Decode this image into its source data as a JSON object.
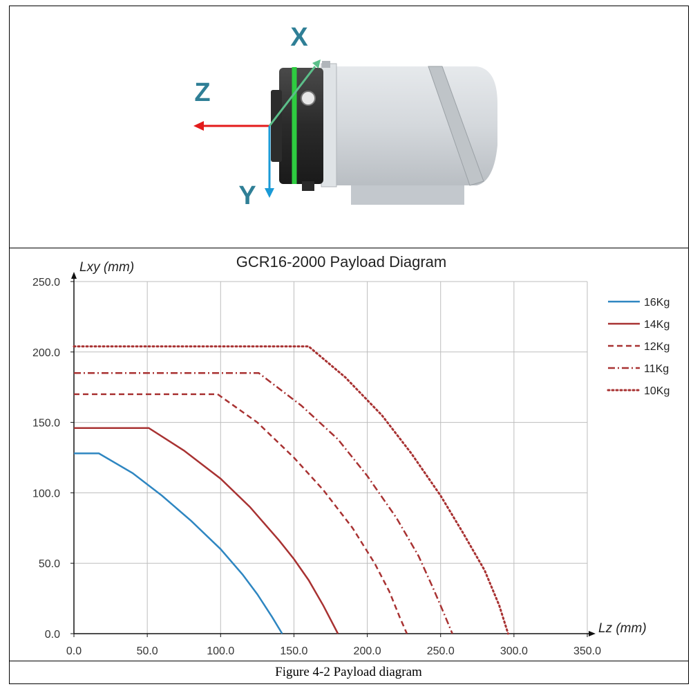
{
  "figure": {
    "axis_labels": {
      "x": "X",
      "y": "Y",
      "z": "Z"
    },
    "caption": "Figure 4-2 Payload diagram"
  },
  "colors": {
    "x_axis": "#5cbf8a",
    "y_axis": "#1a9ad6",
    "z_axis": "#e31b1b",
    "flange_ring": "#2ecc40",
    "axis_letters": "#2f7f96",
    "series_blue": "#2e86c1",
    "series_red": "#a83232"
  },
  "chart_data": {
    "type": "line",
    "title": "GCR16-2000 Payload Diagram",
    "xlabel": "Lz (mm)",
    "ylabel": "Lxy (mm)",
    "xlim": [
      0,
      350
    ],
    "ylim": [
      0,
      250
    ],
    "x_ticks": [
      "0.0",
      "50.0",
      "100.0",
      "150.0",
      "200.0",
      "250.0",
      "300.0",
      "350.0"
    ],
    "y_ticks": [
      "0.0",
      "50.0",
      "100.0",
      "150.0",
      "200.0",
      "250.0"
    ],
    "grid": true,
    "legend_position": "right",
    "series": [
      {
        "name": "16Kg",
        "style": "solid",
        "color": "#2e86c1",
        "points": [
          [
            0,
            128
          ],
          [
            17,
            128
          ],
          [
            40,
            114
          ],
          [
            60,
            98
          ],
          [
            80,
            80
          ],
          [
            100,
            60
          ],
          [
            115,
            42
          ],
          [
            125,
            28
          ],
          [
            135,
            12
          ],
          [
            142,
            0
          ]
        ]
      },
      {
        "name": "14Kg",
        "style": "solid",
        "color": "#a83232",
        "points": [
          [
            0,
            146
          ],
          [
            51,
            146
          ],
          [
            75,
            130
          ],
          [
            100,
            110
          ],
          [
            120,
            90
          ],
          [
            140,
            66
          ],
          [
            150,
            53
          ],
          [
            160,
            38
          ],
          [
            170,
            20
          ],
          [
            180,
            0
          ]
        ]
      },
      {
        "name": "12Kg",
        "style": "dashed",
        "color": "#a83232",
        "points": [
          [
            0,
            170
          ],
          [
            98,
            170
          ],
          [
            125,
            150
          ],
          [
            150,
            125
          ],
          [
            170,
            102
          ],
          [
            190,
            75
          ],
          [
            205,
            50
          ],
          [
            215,
            30
          ],
          [
            222,
            12
          ],
          [
            227,
            0
          ]
        ]
      },
      {
        "name": "11Kg",
        "style": "dashdot",
        "color": "#a83232",
        "points": [
          [
            0,
            185
          ],
          [
            126,
            185
          ],
          [
            155,
            162
          ],
          [
            180,
            138
          ],
          [
            200,
            112
          ],
          [
            220,
            82
          ],
          [
            235,
            55
          ],
          [
            245,
            32
          ],
          [
            252,
            15
          ],
          [
            258,
            0
          ]
        ]
      },
      {
        "name": "10Kg",
        "style": "dotted",
        "color": "#a83232",
        "points": [
          [
            0,
            204
          ],
          [
            160,
            204
          ],
          [
            185,
            182
          ],
          [
            210,
            155
          ],
          [
            230,
            128
          ],
          [
            250,
            98
          ],
          [
            265,
            72
          ],
          [
            280,
            45
          ],
          [
            290,
            20
          ],
          [
            296,
            0
          ]
        ]
      }
    ]
  }
}
